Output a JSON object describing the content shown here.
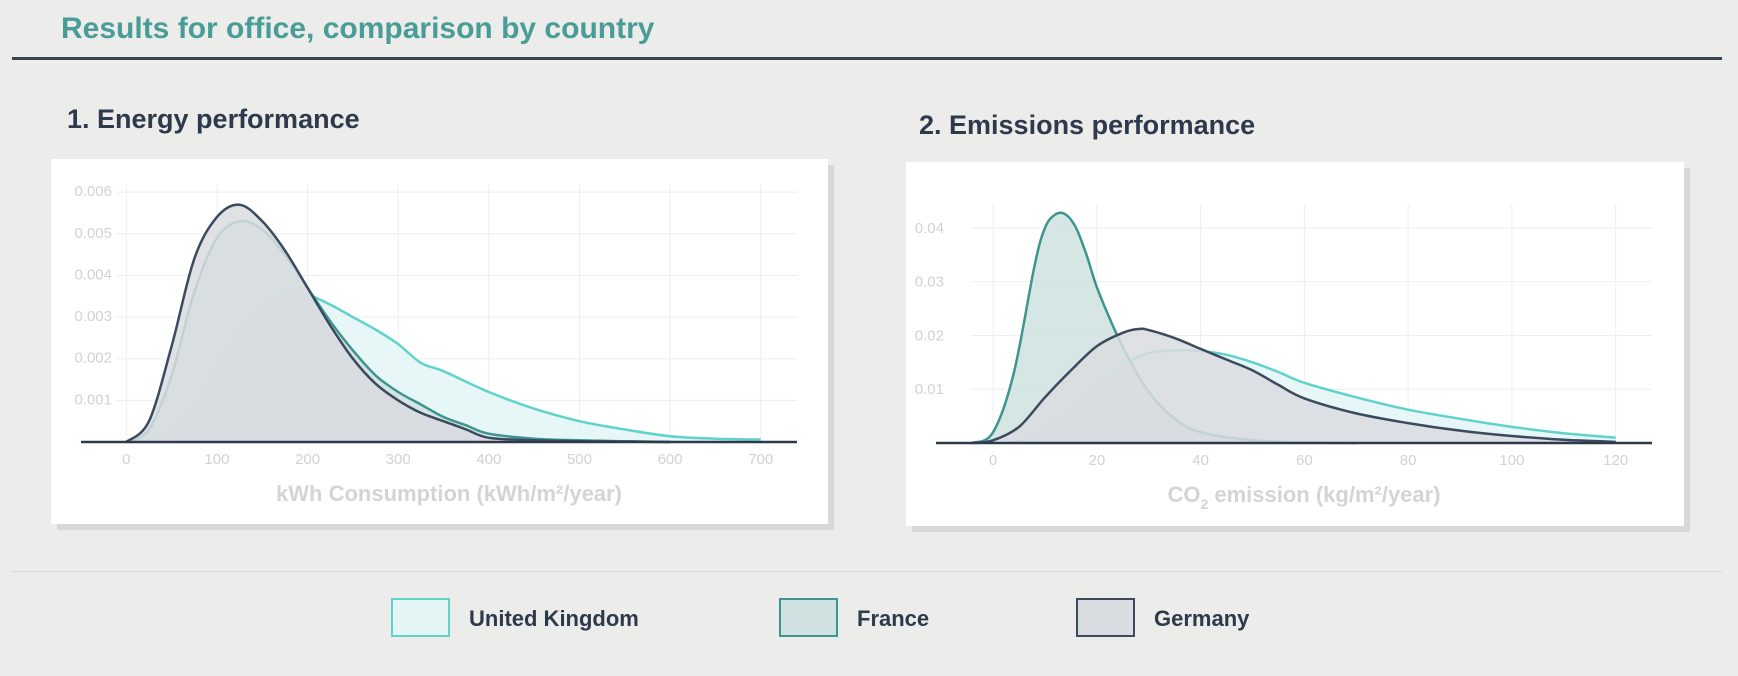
{
  "page_title": "Results for office, comparison by country",
  "colors": {
    "uk_line": "#5fd3cb",
    "uk_fill": "#e3f5f4",
    "france_line": "#3e9590",
    "france_fill": "#cfe2e1",
    "germany_line": "#3b4a5e",
    "germany_fill": "#d9dce1",
    "grid": "#eeeeee",
    "baseline": "#2e3a4c",
    "title": "#4a9d97"
  },
  "legend": [
    {
      "name": "United Kingdom",
      "key": "uk"
    },
    {
      "name": "France",
      "key": "france"
    },
    {
      "name": "Germany",
      "key": "germany"
    }
  ],
  "chart_data": [
    {
      "type": "area",
      "title": "1. Energy performance",
      "xlabel": "kWh Consumption (kWh/m²/year)",
      "ylabel": "",
      "xlim": [
        -50,
        740
      ],
      "ylim": [
        0,
        0.0061
      ],
      "xticks": [
        0,
        100,
        200,
        300,
        400,
        500,
        600,
        700
      ],
      "yticks": [
        0.001,
        0.002,
        0.003,
        0.004,
        0.005,
        0.006
      ],
      "ytick_labels": [
        "0.001",
        "0.002",
        "0.003",
        "0.004",
        "0.005",
        "0.006"
      ],
      "grid": true,
      "series": [
        {
          "name": "United Kingdom",
          "key": "uk",
          "x": [
            0,
            25,
            50,
            75,
            100,
            125,
            150,
            175,
            190,
            200,
            225,
            250,
            275,
            300,
            325,
            350,
            400,
            450,
            500,
            550,
            600,
            650,
            700
          ],
          "y": [
            0,
            5e-05,
            0.00028,
            0.0009,
            0.0018,
            0.0027,
            0.0033,
            0.0036,
            0.0036,
            0.00355,
            0.0033,
            0.003,
            0.0027,
            0.00235,
            0.0019,
            0.0017,
            0.0012,
            0.0008,
            0.0005,
            0.0003,
            0.00014,
            8e-05,
            6e-05
          ]
        },
        {
          "name": "France",
          "key": "france",
          "x": [
            0,
            25,
            50,
            75,
            100,
            125,
            150,
            175,
            200,
            225,
            250,
            275,
            300,
            325,
            350,
            375,
            400,
            450,
            500,
            550,
            600
          ],
          "y": [
            0,
            0.0003,
            0.0016,
            0.0036,
            0.0049,
            0.0053,
            0.0051,
            0.0045,
            0.0037,
            0.0029,
            0.0022,
            0.0016,
            0.0012,
            0.0009,
            0.0006,
            0.0004,
            0.0002,
            8e-05,
            4e-05,
            2e-05,
            0
          ]
        },
        {
          "name": "Germany",
          "key": "germany",
          "x": [
            0,
            25,
            50,
            75,
            100,
            125,
            150,
            175,
            200,
            225,
            250,
            275,
            300,
            325,
            350,
            375,
            400,
            450,
            500,
            550,
            600
          ],
          "y": [
            0,
            0.0005,
            0.0023,
            0.0044,
            0.0054,
            0.0057,
            0.0053,
            0.0046,
            0.0037,
            0.0028,
            0.002,
            0.0014,
            0.001,
            0.0007,
            0.0005,
            0.0003,
            0.0001,
            4e-05,
            2e-05,
            1e-05,
            0
          ]
        }
      ]
    },
    {
      "type": "area",
      "title": "2. Emissions performance",
      "xlabel": "CO₂ emission (kg/m²/year)",
      "ylabel": "",
      "xlim": [
        -11,
        127
      ],
      "ylim": [
        0,
        0.0437
      ],
      "xticks": [
        0,
        20,
        40,
        60,
        80,
        100,
        120
      ],
      "yticks": [
        0.01,
        0.02,
        0.03,
        0.04
      ],
      "ytick_labels": [
        "0.01",
        "0.02",
        "0.03",
        "0.04"
      ],
      "grid": true,
      "series": [
        {
          "name": "United Kingdom",
          "key": "uk",
          "x": [
            4,
            10,
            15,
            20,
            25,
            30,
            35,
            40,
            45,
            50,
            55,
            60,
            70,
            80,
            90,
            100,
            110,
            120
          ],
          "y": [
            0,
            0.003,
            0.0065,
            0.0105,
            0.0145,
            0.0167,
            0.0172,
            0.0171,
            0.0164,
            0.015,
            0.0132,
            0.0112,
            0.0085,
            0.0062,
            0.0045,
            0.003,
            0.0018,
            0.001
          ]
        },
        {
          "name": "France",
          "key": "france",
          "x": [
            -4,
            0,
            4,
            8,
            10,
            12,
            14,
            16,
            18,
            20,
            23,
            26,
            30,
            35,
            40,
            50,
            60,
            70
          ],
          "y": [
            0,
            0.002,
            0.013,
            0.033,
            0.04,
            0.0425,
            0.0425,
            0.04,
            0.035,
            0.029,
            0.022,
            0.016,
            0.0095,
            0.0045,
            0.002,
            0.0005,
            0.0001,
            0
          ]
        },
        {
          "name": "Germany",
          "key": "germany",
          "x": [
            -4,
            0,
            5,
            10,
            15,
            20,
            25,
            28,
            30,
            35,
            40,
            45,
            50,
            55,
            60,
            70,
            80,
            90,
            100,
            110,
            120
          ],
          "y": [
            0,
            0.0005,
            0.003,
            0.0085,
            0.0135,
            0.018,
            0.0205,
            0.0212,
            0.021,
            0.0195,
            0.0175,
            0.0155,
            0.0135,
            0.0108,
            0.0083,
            0.0055,
            0.0037,
            0.0023,
            0.0013,
            0.0006,
            0.0002
          ]
        }
      ]
    }
  ]
}
